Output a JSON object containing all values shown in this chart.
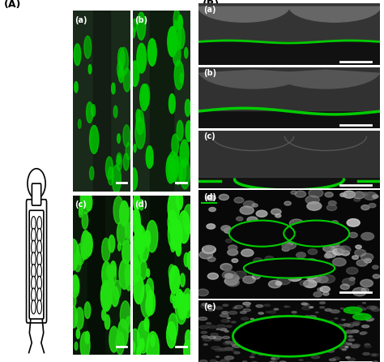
{
  "fig_width": 4.74,
  "fig_height": 4.46,
  "dpi": 100,
  "bg_color": "#ffffff",
  "label_A": "(A)",
  "label_B": "(B)",
  "panel_labels_left": [
    "(a)",
    "(b)",
    "(c)",
    "(d)"
  ],
  "panel_labels_right": [
    "(a)",
    "(b)",
    "(c)",
    "(d)",
    "(e)"
  ],
  "panel_bg_dark": "#1a2a1a",
  "panel_bg_darker": "#0a0a0a",
  "green_color": "#00cc00",
  "gray_color": "#888888",
  "text_color": "#000000",
  "label_color": "#ffffff",
  "scalebar_color": "#ffffff",
  "schematic_color": "#000000"
}
